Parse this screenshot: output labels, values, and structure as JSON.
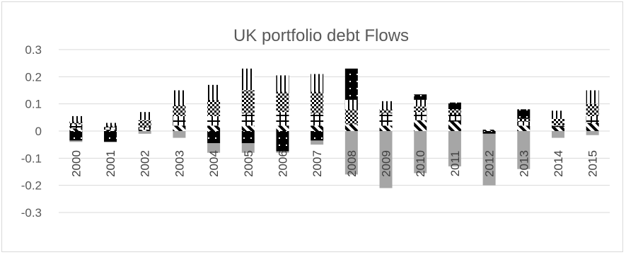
{
  "chart_data": {
    "type": "bar",
    "stacked": true,
    "title": "UK portfolio debt Flows",
    "xlabel": "",
    "ylabel": "",
    "ylim": [
      -0.3,
      0.3
    ],
    "yticks": [
      "0.3",
      "0.2",
      "0.1",
      "0",
      "-0.1",
      "-0.2",
      "-0.3"
    ],
    "ytick_values": [
      0.3,
      0.2,
      0.1,
      0,
      -0.1,
      -0.2,
      -0.3
    ],
    "grid": true,
    "legend": "none",
    "categories": [
      "2000",
      "2001",
      "2002",
      "2003",
      "2004",
      "2005",
      "2006",
      "2007",
      "2008",
      "2009",
      "2010",
      "2011",
      "2012",
      "2013",
      "2014",
      "2015"
    ],
    "series": [
      {
        "pattern": "diagonal",
        "color": "#000000",
        "values": [
          0.01,
          0.005,
          0.005,
          0.02,
          0.02,
          0.02,
          0.02,
          0.02,
          0.025,
          0.02,
          0.04,
          0.035,
          0.005,
          0.02,
          0.015,
          0.03
        ]
      },
      {
        "pattern": "grid-cross",
        "color": "#000000",
        "values": [
          0.015,
          0.01,
          0.01,
          0.035,
          0.035,
          0.045,
          0.05,
          0.045,
          0.0,
          0.045,
          0.03,
          0.025,
          0.0,
          0.015,
          0.005,
          0.025
        ]
      },
      {
        "pattern": "checker",
        "color": "#000000",
        "values": [
          0.01,
          0.005,
          0.025,
          0.04,
          0.06,
          0.085,
          0.075,
          0.08,
          0.055,
          0.015,
          0.02,
          0.02,
          0.0,
          0.01,
          0.025,
          0.045
        ]
      },
      {
        "pattern": "vertical",
        "color": "#000000",
        "values": [
          0.02,
          0.01,
          0.03,
          0.055,
          0.055,
          0.08,
          0.06,
          0.065,
          0.035,
          0.03,
          0.025,
          0.0,
          0.0,
          0.0,
          0.03,
          0.05
        ]
      },
      {
        "pattern": "dotted-solid",
        "color": "#000000",
        "values": [
          -0.035,
          -0.04,
          0.0,
          0.0,
          -0.045,
          -0.045,
          -0.075,
          -0.035,
          0.115,
          0.0,
          0.02,
          0.025,
          -0.01,
          0.035,
          0.0,
          0.0
        ]
      },
      {
        "pattern": "solid-gray",
        "color": "#a6a6a6",
        "values": [
          -0.005,
          0.0,
          -0.01,
          -0.025,
          -0.035,
          -0.035,
          -0.005,
          -0.015,
          -0.16,
          -0.21,
          -0.155,
          -0.13,
          -0.19,
          -0.14,
          -0.025,
          -0.015
        ]
      }
    ]
  }
}
